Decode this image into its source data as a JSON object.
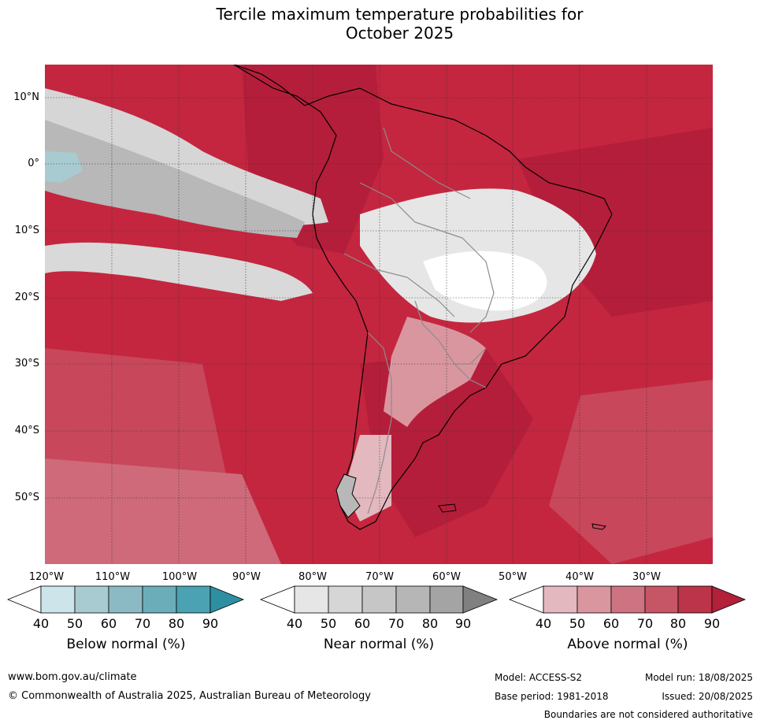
{
  "title_line1": "Tercile maximum temperature probabilities for",
  "title_line2": "October 2025",
  "lat_ticks": [
    "10°N",
    "0°",
    "10°S",
    "20°S",
    "30°S",
    "40°S",
    "50°S"
  ],
  "lon_ticks": [
    "120°W",
    "110°W",
    "100°W",
    "90°W",
    "80°W",
    "70°W",
    "60°W",
    "50°W",
    "40°W",
    "30°W"
  ],
  "colorbars": {
    "below": {
      "label": "Below normal (%)",
      "ticks": [
        "40",
        "50",
        "60",
        "70",
        "80",
        "90"
      ],
      "colors": [
        "#ffffff",
        "#cde4ea",
        "#a8cbd1",
        "#8cbac4",
        "#6cadba",
        "#4aa2b3",
        "#2e8fa3"
      ]
    },
    "near": {
      "label": "Near normal (%)",
      "ticks": [
        "40",
        "50",
        "60",
        "70",
        "80",
        "90"
      ],
      "colors": [
        "#ffffff",
        "#e6e6e6",
        "#d6d6d6",
        "#c6c6c6",
        "#b6b6b6",
        "#a4a4a4",
        "#808080"
      ]
    },
    "above": {
      "label": "Above normal (%)",
      "ticks": [
        "40",
        "50",
        "60",
        "70",
        "80",
        "90"
      ],
      "colors": [
        "#ffffff",
        "#e3b8bf",
        "#d9969f",
        "#cd7381",
        "#c65566",
        "#bb3449",
        "#b2203a"
      ]
    }
  },
  "footer": {
    "website": "www.bom.gov.au/climate",
    "copyright": "© Commonwealth of Australia 2025, Australian Bureau of Meteorology",
    "model": "Model: ACCESS-S2",
    "base_period": "Base period: 1981-2018",
    "model_run": "Model run: 18/08/2025",
    "issued": "Issued: 20/08/2025",
    "disclaimer": "Boundaries are not considered authoritative"
  }
}
